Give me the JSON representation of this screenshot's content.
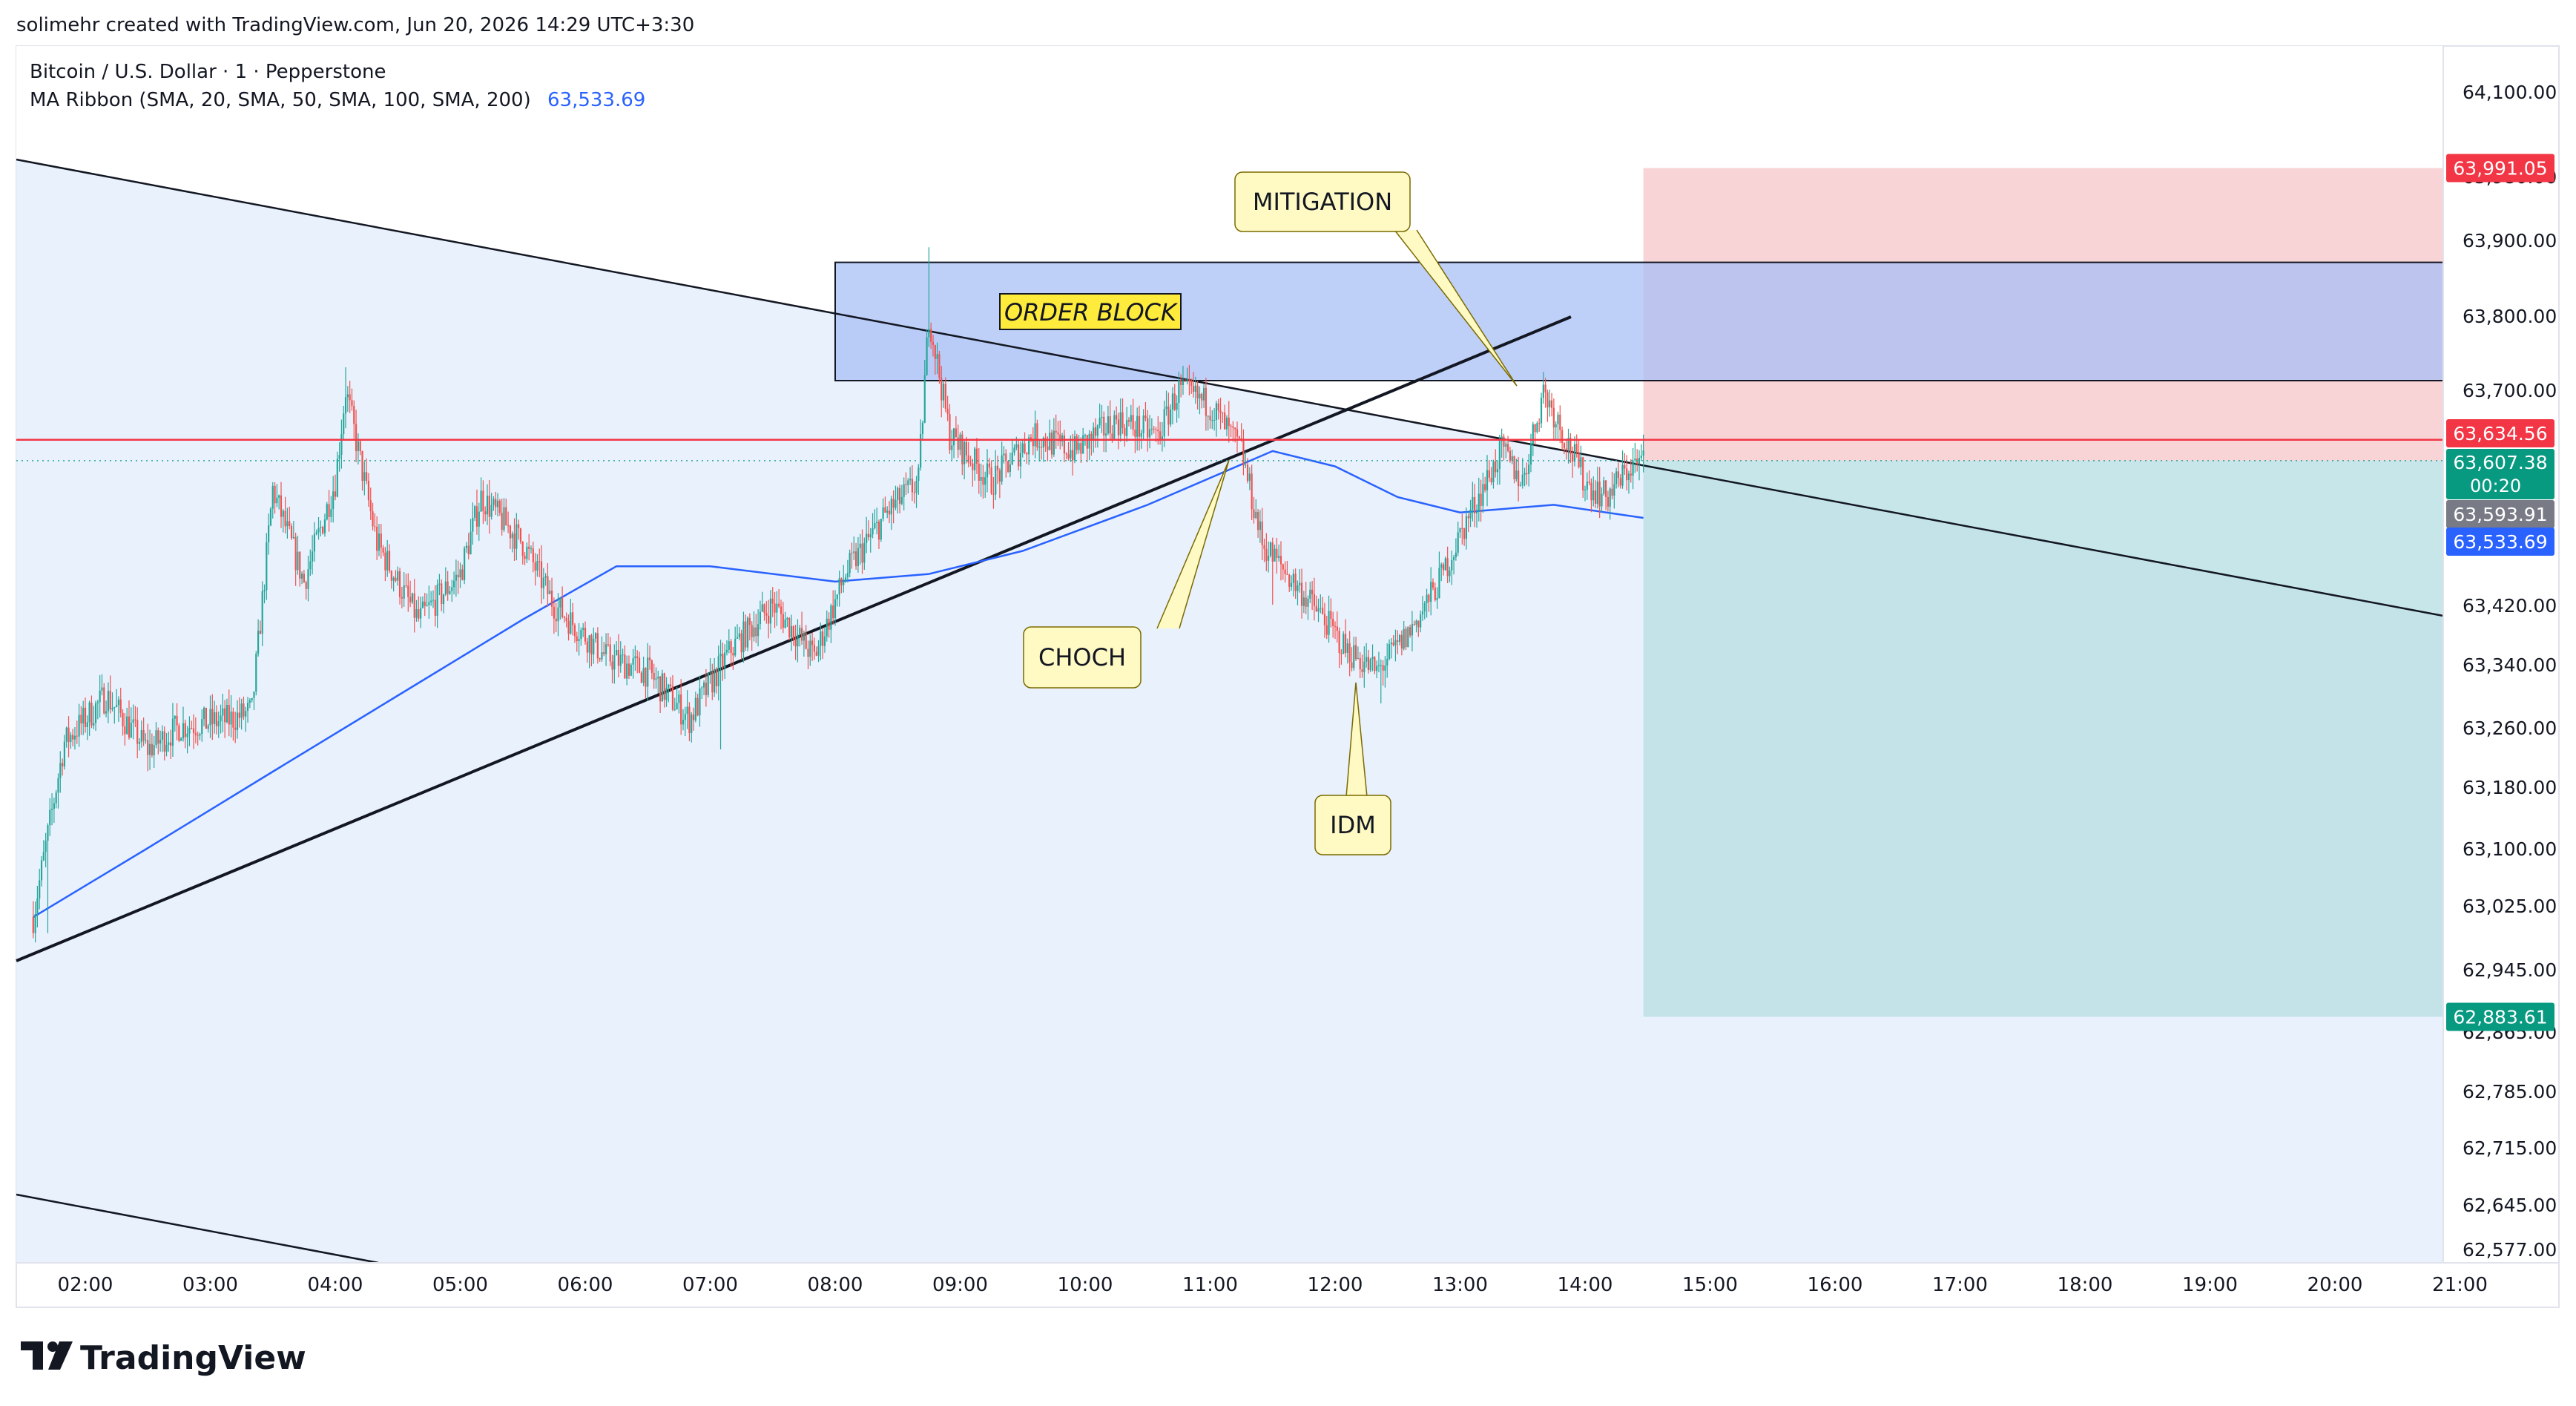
{
  "header": {
    "creator_line": "solimehr created with TradingView.com, Jun 20, 2026 14:29 UTC+3:30"
  },
  "legend": {
    "symbol_line": "Bitcoin / U.S. Dollar · 1 · Pepperstone",
    "ma_label": "MA Ribbon (SMA, 20, SMA, 50, SMA, 100, SMA, 200)",
    "ma_value": "63,533.69"
  },
  "brand": {
    "name": "TradingView"
  },
  "annotations": {
    "order_block": "ORDER BLOCK",
    "mitigation": "MITIGATION",
    "choch": "CHOCH",
    "idm": "IDM"
  },
  "price_badges": {
    "stop": "63,991.05",
    "entry": "63,634.56",
    "last": "63,607.38",
    "countdown": "00:20",
    "prev": "63,593.91",
    "ma": "63,533.69",
    "target": "62,883.61"
  },
  "colors": {
    "bull": "#26a69a",
    "bear": "#ef5350",
    "ma": "#2962ff",
    "order_block": "#a8bff5",
    "stop_zone": "#f8c9cc",
    "target_zone": "#b9e0e3",
    "entry_line": "#f23645"
  },
  "chart_data": {
    "type": "candlestick",
    "symbol": "Bitcoin / U.S. Dollar",
    "timeframe": "1",
    "x_ticks": [
      "02:00",
      "03:00",
      "04:00",
      "05:00",
      "06:00",
      "07:00",
      "08:00",
      "09:00",
      "10:00",
      "11:00",
      "12:00",
      "13:00",
      "14:00",
      "15:00",
      "16:00",
      "17:00",
      "18:00",
      "19:00",
      "20:00",
      "21:00"
    ],
    "y_ticks": [
      "64,100.00",
      "63,980.00",
      "63,900.00",
      "63,800.00",
      "63,700.00",
      "63,420.00",
      "63,340.00",
      "63,260.00",
      "63,180.00",
      "63,100.00",
      "63,025.00",
      "62,945.00",
      "62,865.00",
      "62,785.00",
      "62,715.00",
      "62,645.00",
      "62,577.00"
    ],
    "ylim": [
      62577,
      64100
    ],
    "price_anchors": [
      {
        "t": "01:35",
        "v": 63010
      },
      {
        "t": "01:50",
        "v": 63240
      },
      {
        "t": "02:10",
        "v": 63300
      },
      {
        "t": "02:30",
        "v": 63230
      },
      {
        "t": "02:45",
        "v": 63260
      },
      {
        "t": "03:10",
        "v": 63270
      },
      {
        "t": "03:20",
        "v": 63280
      },
      {
        "t": "03:30",
        "v": 63570
      },
      {
        "t": "03:45",
        "v": 63450
      },
      {
        "t": "04:00",
        "v": 63580
      },
      {
        "t": "04:05",
        "v": 63700
      },
      {
        "t": "04:20",
        "v": 63500
      },
      {
        "t": "04:40",
        "v": 63400
      },
      {
        "t": "05:00",
        "v": 63460
      },
      {
        "t": "05:10",
        "v": 63560
      },
      {
        "t": "05:30",
        "v": 63500
      },
      {
        "t": "05:45",
        "v": 63420
      },
      {
        "t": "06:10",
        "v": 63350
      },
      {
        "t": "06:30",
        "v": 63330
      },
      {
        "t": "06:50",
        "v": 63270
      },
      {
        "t": "07:10",
        "v": 63360
      },
      {
        "t": "07:30",
        "v": 63420
      },
      {
        "t": "07:50",
        "v": 63350
      },
      {
        "t": "08:05",
        "v": 63460
      },
      {
        "t": "08:25",
        "v": 63540
      },
      {
        "t": "08:40",
        "v": 63580
      },
      {
        "t": "08:45",
        "v": 63800
      },
      {
        "t": "08:55",
        "v": 63640
      },
      {
        "t": "09:15",
        "v": 63580
      },
      {
        "t": "09:35",
        "v": 63640
      },
      {
        "t": "09:55",
        "v": 63620
      },
      {
        "t": "10:15",
        "v": 63660
      },
      {
        "t": "10:35",
        "v": 63640
      },
      {
        "t": "10:45",
        "v": 63700
      },
      {
        "t": "11:00",
        "v": 63680
      },
      {
        "t": "11:15",
        "v": 63620
      },
      {
        "t": "11:25",
        "v": 63500
      },
      {
        "t": "11:40",
        "v": 63450
      },
      {
        "t": "11:55",
        "v": 63400
      },
      {
        "t": "12:05",
        "v": 63360
      },
      {
        "t": "12:20",
        "v": 63330
      },
      {
        "t": "12:35",
        "v": 63380
      },
      {
        "t": "12:50",
        "v": 63450
      },
      {
        "t": "13:05",
        "v": 63540
      },
      {
        "t": "13:20",
        "v": 63620
      },
      {
        "t": "13:30",
        "v": 63580
      },
      {
        "t": "13:40",
        "v": 63700
      },
      {
        "t": "13:50",
        "v": 63640
      },
      {
        "t": "14:00",
        "v": 63580
      },
      {
        "t": "14:10",
        "v": 63560
      },
      {
        "t": "14:22",
        "v": 63600
      },
      {
        "t": "14:28",
        "v": 63607
      }
    ],
    "ma_anchors": [
      {
        "t": "01:35",
        "v": 63010
      },
      {
        "t": "02:30",
        "v": 63100
      },
      {
        "t": "03:30",
        "v": 63200
      },
      {
        "t": "04:30",
        "v": 63300
      },
      {
        "t": "05:30",
        "v": 63400
      },
      {
        "t": "06:15",
        "v": 63470
      },
      {
        "t": "07:00",
        "v": 63470
      },
      {
        "t": "08:00",
        "v": 63450
      },
      {
        "t": "08:45",
        "v": 63460
      },
      {
        "t": "09:30",
        "v": 63490
      },
      {
        "t": "10:30",
        "v": 63550
      },
      {
        "t": "11:30",
        "v": 63620
      },
      {
        "t": "12:00",
        "v": 63600
      },
      {
        "t": "12:30",
        "v": 63560
      },
      {
        "t": "13:00",
        "v": 63540
      },
      {
        "t": "13:45",
        "v": 63550
      },
      {
        "t": "14:28",
        "v": 63533
      }
    ],
    "order_block": {
      "t_start": "08:00",
      "t_end": "21:10",
      "v_low": 63712,
      "v_high": 63870
    },
    "position": {
      "t_start": "14:28",
      "t_end": "21:10",
      "entry": 63607.38,
      "stop": 63991.05,
      "target": 62883.61,
      "entry_line": 63634.56
    }
  }
}
